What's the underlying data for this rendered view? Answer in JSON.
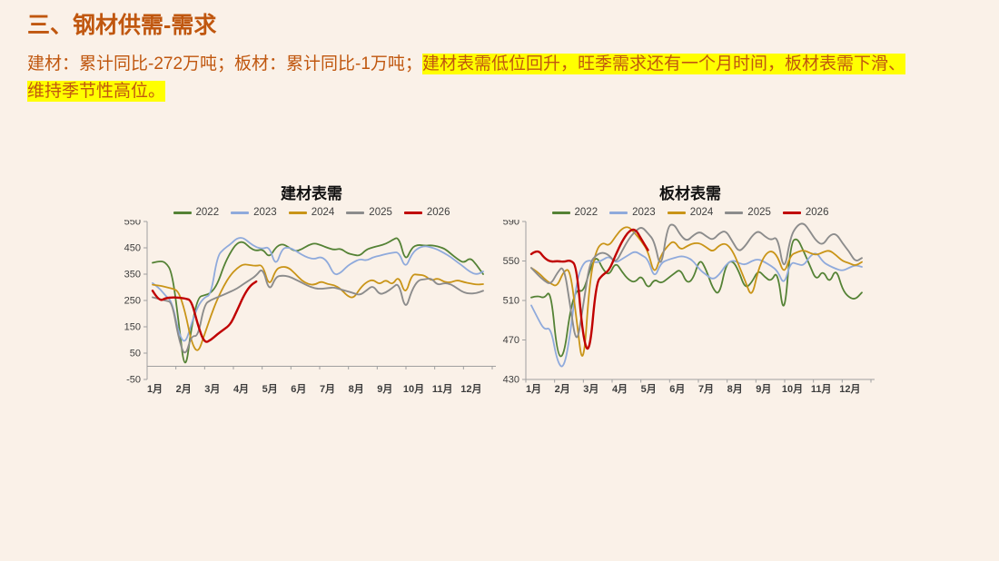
{
  "slide": {
    "title": "三、钢材供需-需求",
    "body_plain": "建材：累计同比-272万吨；板材：累计同比-1万吨；",
    "body_highlight_1": "建材表需低位回升，旺季需求还有一个月时间，板材表需下滑、",
    "body_highlight_2": "维持季节性高位。",
    "colors": {
      "background": "#faf1e8",
      "accent_text": "#c0570f",
      "highlight": "#ffff00"
    }
  },
  "chart_data": [
    {
      "type": "line",
      "title": "建材表需",
      "legend_position": "top",
      "grid": false,
      "x_labels": [
        "1月",
        "2月",
        "3月",
        "4月",
        "5月",
        "6月",
        "7月",
        "8月",
        "9月",
        "10月",
        "11月",
        "12月"
      ],
      "y_ticks": [
        550,
        450,
        350,
        250,
        150,
        50,
        -50
      ],
      "ylim": [
        -50,
        550
      ],
      "x_axis_cross": 0,
      "series": [
        {
          "name": "2022",
          "color": "#548235",
          "stroke_width": 1.8,
          "values": [
            393,
            400,
            396,
            358,
            175,
            -35,
            150,
            262,
            270,
            278,
            312,
            382,
            432,
            468,
            474,
            450,
            438,
            446,
            412,
            452,
            466,
            452,
            436,
            444,
            460,
            468,
            460,
            450,
            442,
            448,
            430,
            423,
            420,
            444,
            452,
            458,
            465,
            480,
            492,
            396,
            452,
            462,
            458,
            460,
            455,
            448,
            428,
            408,
            392,
            413,
            385,
            350
          ]
        },
        {
          "name": "2023",
          "color": "#8faadc",
          "stroke_width": 1.8,
          "values": [
            316,
            298,
            268,
            246,
            128,
            82,
            162,
            230,
            262,
            271,
            420,
            446,
            463,
            487,
            489,
            468,
            452,
            446,
            455,
            378,
            448,
            452,
            440,
            424,
            412,
            407,
            417,
            398,
            346,
            354,
            380,
            396,
            408,
            401,
            414,
            420,
            427,
            431,
            435,
            370,
            428,
            450,
            457,
            452,
            443,
            430,
            415,
            396,
            378,
            358,
            348,
            360
          ]
        },
        {
          "name": "2024",
          "color": "#c99417",
          "stroke_width": 1.8,
          "values": [
            310,
            307,
            301,
            296,
            286,
            210,
            90,
            48,
            120,
            192,
            256,
            306,
            346,
            372,
            388,
            385,
            381,
            386,
            300,
            368,
            379,
            375,
            352,
            326,
            312,
            309,
            323,
            312,
            309,
            295,
            268,
            258,
            296,
            320,
            330,
            310,
            330,
            308,
            345,
            268,
            350,
            348,
            345,
            325,
            335,
            320,
            318,
            328,
            320,
            315,
            310,
            312
          ]
        },
        {
          "name": "2025",
          "color": "#8c8c8c",
          "stroke_width": 1.9,
          "values": [
            262,
            256,
            250,
            243,
            108,
            32,
            118,
            112,
            236,
            252,
            262,
            272,
            283,
            295,
            312,
            328,
            345,
            376,
            282,
            340,
            345,
            342,
            330,
            318,
            305,
            296,
            294,
            297,
            300,
            292,
            285,
            278,
            270,
            288,
            308,
            272,
            280,
            298,
            318,
            210,
            290,
            328,
            330,
            335,
            308,
            317,
            312,
            296,
            280,
            276,
            278,
            287
          ]
        },
        {
          "name": "2026",
          "color": "#c00000",
          "stroke_width": 2.4,
          "values": [
            287,
            247,
            259,
            262,
            261,
            258,
            250,
            155,
            88,
            100,
            122,
            140,
            158,
            210,
            265,
            305,
            322
          ]
        }
      ]
    },
    {
      "type": "line",
      "title": "板材表需",
      "legend_position": "top",
      "grid": false,
      "x_labels": [
        "1月",
        "2月",
        "3月",
        "4月",
        "5月",
        "6月",
        "7月",
        "8月",
        "9月",
        "10月",
        "11月",
        "12月"
      ],
      "y_ticks": [
        590,
        550,
        510,
        470,
        430
      ],
      "ylim": [
        430,
        590
      ],
      "x_axis_cross": 430,
      "series": [
        {
          "name": "2022",
          "color": "#548235",
          "stroke_width": 1.8,
          "values": [
            513,
            515,
            512,
            521,
            455,
            452,
            500,
            522,
            518,
            540,
            556,
            542,
            535,
            549,
            539,
            531,
            528,
            536,
            521,
            532,
            527,
            532,
            537,
            542,
            527,
            532,
            553,
            541,
            522,
            515,
            546,
            551,
            540,
            522,
            528,
            541,
            534,
            529,
            541,
            489,
            568,
            574,
            560,
            545,
            530,
            541,
            527,
            543,
            521,
            513,
            511,
            518
          ]
        },
        {
          "name": "2023",
          "color": "#8faadc",
          "stroke_width": 1.8,
          "values": [
            505,
            492,
            480,
            483,
            448,
            440,
            475,
            530,
            548,
            551,
            548,
            551,
            555,
            548,
            552,
            556,
            560,
            556,
            552,
            532,
            548,
            551,
            553,
            555,
            554,
            550,
            541,
            536,
            531,
            536,
            546,
            551,
            548,
            546,
            550,
            552,
            549,
            545,
            540,
            525,
            549,
            547,
            545,
            555,
            559,
            549,
            545,
            542,
            540,
            543,
            546,
            544
          ]
        },
        {
          "name": "2024",
          "color": "#c99417",
          "stroke_width": 1.8,
          "values": [
            543,
            539,
            532,
            527,
            524,
            540,
            542,
            490,
            437,
            530,
            561,
            569,
            565,
            575,
            583,
            585,
            578,
            570,
            560,
            535,
            556,
            565,
            571,
            561,
            565,
            568,
            568,
            564,
            559,
            566,
            568,
            561,
            546,
            530,
            512,
            541,
            556,
            561,
            555,
            536,
            556,
            559,
            561,
            558,
            556,
            559,
            561,
            556,
            550,
            548,
            545,
            549
          ]
        },
        {
          "name": "2025",
          "color": "#8c8c8c",
          "stroke_width": 1.9,
          "values": [
            543,
            536,
            530,
            526,
            538,
            546,
            505,
            462,
            505,
            548,
            556,
            559,
            556,
            548,
            560,
            572,
            580,
            585,
            578,
            570,
            540,
            585,
            588,
            576,
            570,
            576,
            580,
            575,
            571,
            578,
            581,
            570,
            559,
            565,
            575,
            581,
            575,
            571,
            575,
            537,
            575,
            586,
            589,
            580,
            570,
            566,
            576,
            578,
            568,
            560,
            549,
            553
          ]
        },
        {
          "name": "2026",
          "color": "#c00000",
          "stroke_width": 2.4,
          "values": [
            557,
            562,
            553,
            549,
            550,
            549,
            551,
            545,
            470,
            455,
            528,
            536,
            540,
            556,
            570,
            580,
            583,
            572,
            561
          ]
        }
      ]
    }
  ]
}
